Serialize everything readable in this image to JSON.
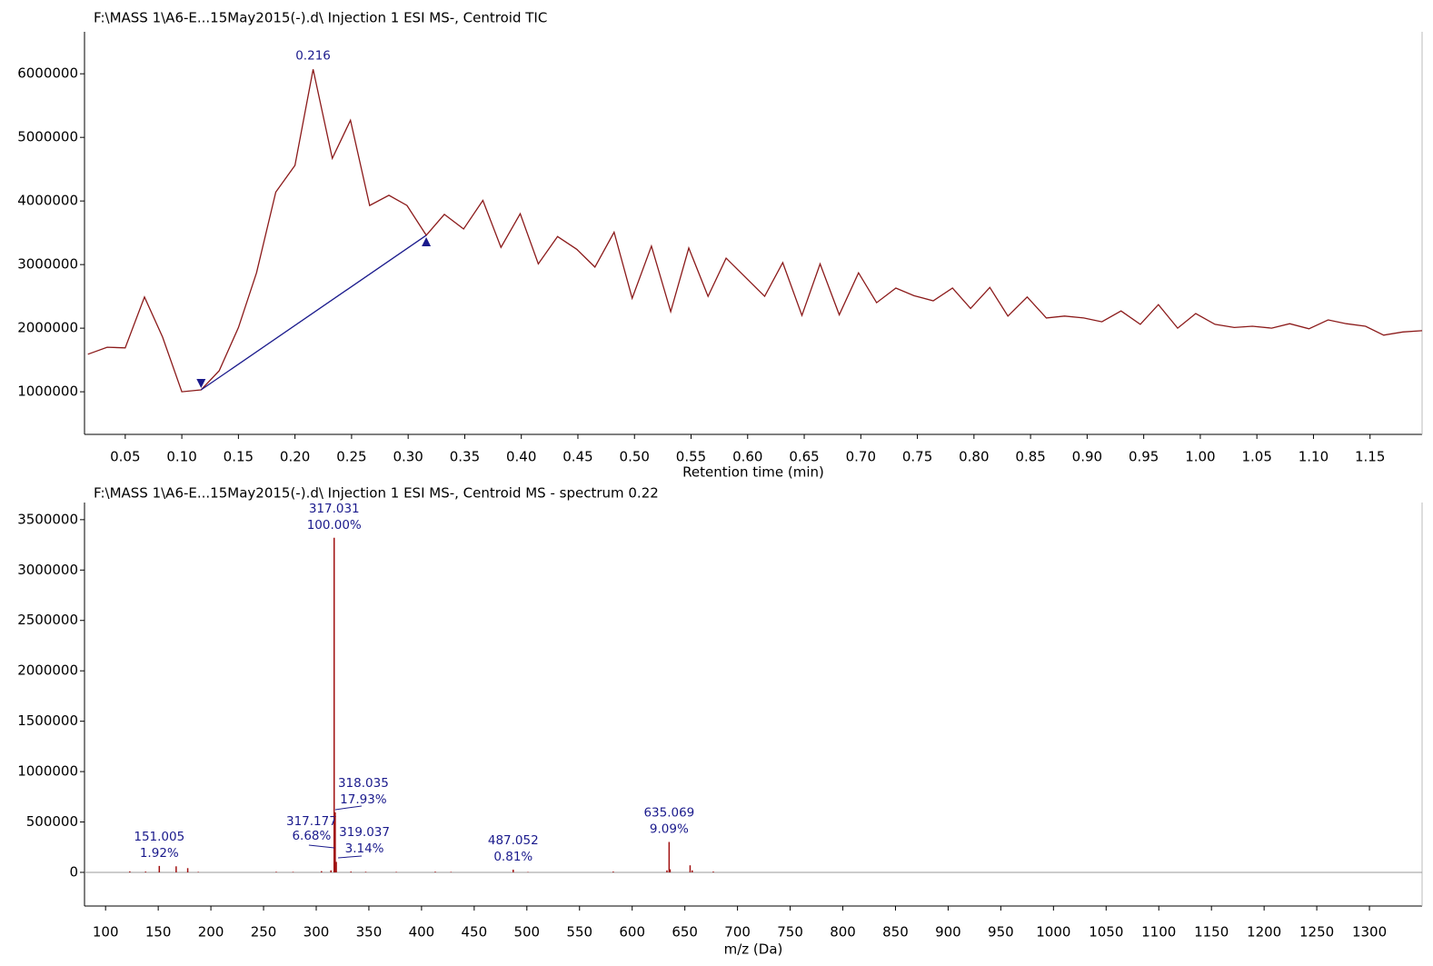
{
  "chart_data": [
    {
      "type": "line",
      "title": "F:\\MASS 1\\A6-E...15May2015(-).d\\ Injection 1 ESI MS-, Centroid TIC",
      "x_label": "Retention time (min)",
      "color": "#8b1a1a",
      "x": [
        0.017,
        0.034,
        0.05,
        0.067,
        0.083,
        0.1,
        0.117,
        0.133,
        0.15,
        0.166,
        0.183,
        0.2,
        0.216,
        0.233,
        0.249,
        0.266,
        0.283,
        0.299,
        0.316,
        0.332,
        0.349,
        0.366,
        0.382,
        0.399,
        0.415,
        0.432,
        0.449,
        0.465,
        0.482,
        0.498,
        0.515,
        0.532,
        0.548,
        0.565,
        0.581,
        0.598,
        0.615,
        0.631,
        0.648,
        0.664,
        0.681,
        0.698,
        0.714,
        0.731,
        0.747,
        0.764,
        0.781,
        0.797,
        0.814,
        0.83,
        0.847,
        0.864,
        0.88,
        0.897,
        0.913,
        0.93,
        0.947,
        0.963,
        0.98,
        0.996,
        1.013,
        1.03,
        1.046,
        1.063,
        1.079,
        1.096,
        1.113,
        1.129,
        1.146,
        1.162,
        1.179,
        1.196
      ],
      "values": [
        1590000,
        1700000,
        1690000,
        2490000,
        1860000,
        1000000,
        1030000,
        1330000,
        2010000,
        2870000,
        4140000,
        4560000,
        6070000,
        4670000,
        5270000,
        3930000,
        4090000,
        3930000,
        3460000,
        3790000,
        3560000,
        4010000,
        3270000,
        3800000,
        3010000,
        3440000,
        3240000,
        2960000,
        3510000,
        2470000,
        3290000,
        2260000,
        3260000,
        2500000,
        3100000,
        2800000,
        2500000,
        3030000,
        2200000,
        3010000,
        2210000,
        2870000,
        2400000,
        2630000,
        2510000,
        2430000,
        2630000,
        2310000,
        2640000,
        2190000,
        2490000,
        2160000,
        2190000,
        2160000,
        2100000,
        2270000,
        2060000,
        2370000,
        2000000,
        2230000,
        2060000,
        2010000,
        2030000,
        2000000,
        2070000,
        1990000,
        2130000,
        2070000,
        2030000,
        1890000,
        1940000,
        1960000
      ],
      "peak": {
        "label": "0.216",
        "x": 0.216,
        "value": 6070000
      },
      "baseline": {
        "x": [
          0.117,
          0.316
        ],
        "values": [
          1030000,
          3460000
        ],
        "color": "#1a1a8c"
      },
      "xlim": [
        0.014,
        1.196
      ],
      "ylim": [
        330000,
        6660000
      ],
      "xticks": [
        0.05,
        {
          "value": 0.1,
          "label": "0.10"
        },
        0.15,
        {
          "value": 0.2,
          "label": "0.20"
        },
        0.25,
        {
          "value": 0.3,
          "label": "0.30"
        },
        0.35,
        {
          "value": 0.4,
          "label": "0.40"
        },
        0.45,
        {
          "value": 0.5,
          "label": "0.50"
        },
        0.55,
        {
          "value": 0.6,
          "label": "0.60"
        },
        0.65,
        {
          "value": 0.7,
          "label": "0.70"
        },
        0.75,
        {
          "value": 0.8,
          "label": "0.80"
        },
        0.85,
        {
          "value": 0.9,
          "label": "0.90"
        },
        0.95,
        {
          "value": 1,
          "label": "1.00"
        },
        1.05,
        {
          "value": 1.1,
          "label": "1.10"
        },
        1.15
      ],
      "yticks": [
        1000000,
        2000000,
        3000000,
        4000000,
        5000000,
        6000000
      ]
    },
    {
      "type": "stick",
      "title": "F:\\MASS 1\\A6-E...15May2015(-).d\\ Injection 1 ESI MS-, Centroid MS - spectrum 0.22",
      "x_label": "m/z (Da)",
      "color": "#a01010",
      "label_color": "#1a1a8c",
      "x": [
        123,
        138,
        151.005,
        167,
        178,
        188,
        262,
        278,
        305,
        314,
        317.031,
        317.177,
        318.035,
        319.037,
        333,
        347,
        376,
        413,
        428,
        487.052,
        501,
        582,
        633,
        635.069,
        636,
        655,
        657,
        677
      ],
      "values": [
        10000,
        8000,
        63744,
        60000,
        42000,
        5000,
        6000,
        5000,
        12000,
        20000,
        3320000,
        221776,
        595276,
        104248,
        8000,
        6000,
        5000,
        7000,
        5000,
        26892,
        4000,
        8000,
        20000,
        301788,
        30000,
        70000,
        20000,
        8000
      ],
      "percent_labels": [
        null,
        null,
        "1.92%",
        null,
        null,
        null,
        null,
        null,
        null,
        null,
        "100.00%",
        "6.68%",
        "17.93%",
        "3.14%",
        null,
        null,
        null,
        null,
        null,
        "0.81%",
        null,
        null,
        null,
        "9.09%",
        null,
        null,
        null,
        null
      ],
      "xlim": [
        80,
        1350
      ],
      "ylim": [
        -334000,
        3670000
      ],
      "xticks": [
        100,
        150,
        200,
        250,
        300,
        350,
        400,
        450,
        500,
        550,
        600,
        650,
        700,
        750,
        800,
        850,
        900,
        950,
        1000,
        1050,
        1100,
        1150,
        1200,
        1250,
        1300
      ],
      "yticks": [
        0,
        500000,
        1000000,
        1500000,
        2000000,
        2500000,
        3000000,
        3500000
      ]
    }
  ]
}
